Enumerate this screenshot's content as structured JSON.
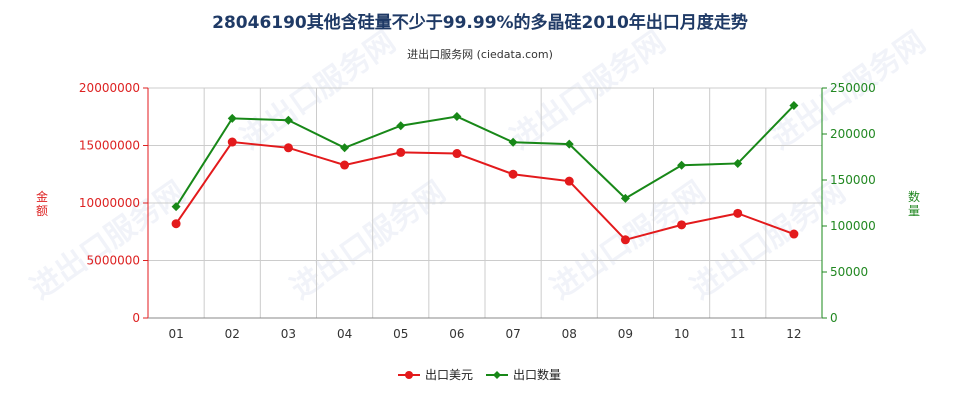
{
  "header": {
    "title": "28046190其他含硅量不少于99.99%的多晶硅2010年出口月度走势",
    "subtitle": "进出口服务网 (ciedata.com)"
  },
  "watermark": "进出口服务网",
  "colors": {
    "series1": "#e31a1c",
    "series2": "#188818",
    "left_axis": "#dd2222",
    "right_axis": "#228822"
  },
  "chart_data": {
    "type": "line",
    "categories": [
      "01",
      "02",
      "03",
      "04",
      "05",
      "06",
      "07",
      "08",
      "09",
      "10",
      "11",
      "12"
    ],
    "series": [
      {
        "name": "出口美元",
        "axis": "left",
        "color": "#e31a1c",
        "values": [
          8200000,
          15300000,
          14800000,
          13300000,
          14400000,
          14300000,
          12500000,
          11900000,
          6800000,
          8100000,
          9100000,
          7300000
        ]
      },
      {
        "name": "出口数量",
        "axis": "right",
        "color": "#188818",
        "values": [
          121000,
          217000,
          215000,
          185000,
          209000,
          219000,
          191000,
          189000,
          130000,
          166000,
          168000,
          231000
        ]
      }
    ],
    "y_left": {
      "label": "金额",
      "range": [
        0,
        20000000
      ],
      "ticks": [
        "0",
        "5000000",
        "10000000",
        "15000000",
        "20000000"
      ]
    },
    "y_right": {
      "label": "数量",
      "range": [
        0,
        250000
      ],
      "ticks": [
        "0",
        "50000",
        "100000",
        "150000",
        "200000",
        "250000"
      ]
    },
    "grid": true,
    "legend_position": "bottom-center"
  }
}
